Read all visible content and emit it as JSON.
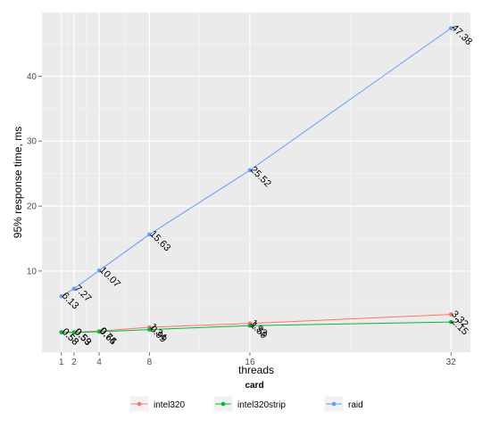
{
  "chart_data": {
    "type": "line",
    "xlabel": "threads",
    "ylabel": "95% response time, ms",
    "x_ticks": [
      1,
      2,
      4,
      8,
      16,
      32
    ],
    "y_ticks": [
      10,
      20,
      30,
      40
    ],
    "xlim": [
      -0.55,
      33.55
    ],
    "ylim": [
      -2.5,
      49.8
    ],
    "grid": true,
    "legend": {
      "title": "card",
      "position": "bottom"
    },
    "series": [
      {
        "name": "intel320",
        "color": "#F8766D",
        "points": [
          {
            "x": 1,
            "y": 0.58,
            "label": "0.58"
          },
          {
            "x": 2,
            "y": 0.59,
            "label": "0.59"
          },
          {
            "x": 4,
            "y": 0.74,
            "label": "0.74"
          },
          {
            "x": 8,
            "y": 1.34,
            "label": "1.34"
          },
          {
            "x": 16,
            "y": 1.93,
            "label": "1.93"
          },
          {
            "x": 32,
            "y": 3.32,
            "label": "3.32"
          }
        ]
      },
      {
        "name": "intel320strip",
        "color": "#00BA38",
        "points": [
          {
            "x": 1,
            "y": 0.58,
            "label": "0.58"
          },
          {
            "x": 2,
            "y": 0.53,
            "label": "0.53"
          },
          {
            "x": 4,
            "y": 0.65,
            "label": "0.65"
          },
          {
            "x": 8,
            "y": 0.99,
            "label": "0.99"
          },
          {
            "x": 16,
            "y": 1.59,
            "label": "1.59"
          },
          {
            "x": 32,
            "y": 2.15,
            "label": "2.15"
          }
        ]
      },
      {
        "name": "raid",
        "color": "#619CFF",
        "points": [
          {
            "x": 1,
            "y": 6.13,
            "label": "6.13"
          },
          {
            "x": 2,
            "y": 7.27,
            "label": "7.27"
          },
          {
            "x": 4,
            "y": 10.07,
            "label": "10.07"
          },
          {
            "x": 8,
            "y": 15.63,
            "label": "15.63"
          },
          {
            "x": 16,
            "y": 25.52,
            "label": "25.52"
          },
          {
            "x": 32,
            "y": 47.38,
            "label": "47.38"
          }
        ]
      }
    ]
  }
}
